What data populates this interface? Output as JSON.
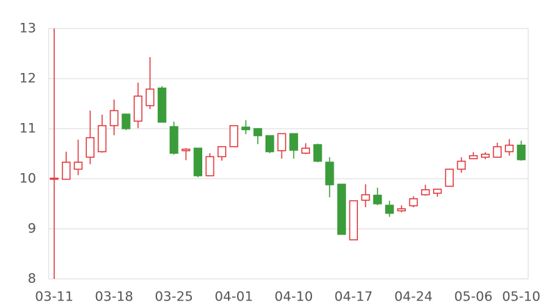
{
  "chart_data": {
    "type": "candlestick",
    "categories": [
      "03-11",
      null,
      null,
      null,
      null,
      "03-18",
      null,
      null,
      null,
      null,
      "03-25",
      null,
      null,
      null,
      null,
      "04-01",
      null,
      null,
      null,
      null,
      "04-10",
      null,
      null,
      null,
      null,
      "04-17",
      null,
      null,
      null,
      null,
      "04-24",
      null,
      null,
      null,
      null,
      "05-06",
      null,
      null,
      null,
      "05-10"
    ],
    "open": [
      10.0,
      9.99,
      10.19,
      10.43,
      10.54,
      11.06,
      11.29,
      11.15,
      11.46,
      11.81,
      11.04,
      10.56,
      10.61,
      10.06,
      10.44,
      10.64,
      11.03,
      11.0,
      10.86,
      10.56,
      10.9,
      10.51,
      10.68,
      10.33,
      9.89,
      8.78,
      9.57,
      9.67,
      9.47,
      9.36,
      9.46,
      9.68,
      9.71,
      9.85,
      10.19,
      10.4,
      10.43,
      10.43,
      10.54,
      10.67
    ],
    "high": [
      13.0,
      10.54,
      10.78,
      11.36,
      11.28,
      11.58,
      11.3,
      11.92,
      12.43,
      11.85,
      11.14,
      10.61,
      10.61,
      10.51,
      10.64,
      11.07,
      11.17,
      11.01,
      10.86,
      10.9,
      10.9,
      10.71,
      10.7,
      10.43,
      9.89,
      9.56,
      9.89,
      9.82,
      9.56,
      9.47,
      9.65,
      9.88,
      9.8,
      10.2,
      10.43,
      10.53,
      10.53,
      10.72,
      10.79,
      10.76
    ],
    "low": [
      8.0,
      9.98,
      10.07,
      10.29,
      10.52,
      10.87,
      10.97,
      11.01,
      11.39,
      11.12,
      10.48,
      10.37,
      10.03,
      10.05,
      10.36,
      10.63,
      10.89,
      10.69,
      10.51,
      10.4,
      10.4,
      10.49,
      10.33,
      9.63,
      8.88,
      8.78,
      9.43,
      9.47,
      9.24,
      9.33,
      9.43,
      9.66,
      9.64,
      9.84,
      10.12,
      10.39,
      10.39,
      10.42,
      10.46,
      10.36
    ],
    "close": [
      10.01,
      10.33,
      10.33,
      10.82,
      11.06,
      11.36,
      11.0,
      11.65,
      11.79,
      11.13,
      10.51,
      10.59,
      10.06,
      10.44,
      10.64,
      11.06,
      10.98,
      10.86,
      10.54,
      10.9,
      10.57,
      10.61,
      10.35,
      9.88,
      8.89,
      9.56,
      9.68,
      9.5,
      9.31,
      9.4,
      9.6,
      9.78,
      9.79,
      10.19,
      10.35,
      10.46,
      10.49,
      10.64,
      10.67,
      10.38
    ],
    "up_color": "#e0393e",
    "down_color": "#3a9c3a",
    "ylim": [
      8,
      13
    ],
    "yticks": [
      8,
      9,
      10,
      11,
      12,
      13
    ],
    "grid": true
  }
}
